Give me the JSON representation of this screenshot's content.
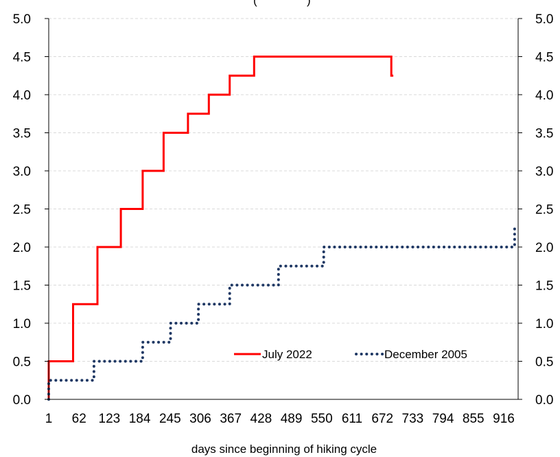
{
  "chart_data": {
    "type": "line",
    "title": "",
    "subtitle_fragment": "(",
    "subtitle_fragment_right": ")",
    "xlabel": "days since beginning of hiking cycle",
    "ylabel": "",
    "xlim": [
      1,
      945
    ],
    "ylim": [
      0,
      5
    ],
    "x_ticks": [
      1,
      62,
      123,
      184,
      245,
      306,
      367,
      428,
      489,
      550,
      611,
      672,
      733,
      794,
      855,
      916
    ],
    "y_ticks": [
      0.0,
      0.5,
      1.0,
      1.5,
      2.0,
      2.5,
      3.0,
      3.5,
      4.0,
      4.5,
      5.0
    ],
    "y_tick_labels": [
      "0.0",
      "0.5",
      "1.0",
      "1.5",
      "2.0",
      "2.5",
      "3.0",
      "3.5",
      "4.0",
      "4.5",
      "5.0"
    ],
    "grid": true,
    "legend_position": "lower-right",
    "series": [
      {
        "name": "July 2022",
        "color": "#ff0000",
        "style": "solid",
        "points": [
          [
            1,
            0.0
          ],
          [
            1,
            0.5
          ],
          [
            50,
            0.5
          ],
          [
            50,
            1.25
          ],
          [
            99,
            1.25
          ],
          [
            99,
            2.0
          ],
          [
            146,
            2.0
          ],
          [
            146,
            2.5
          ],
          [
            190,
            2.5
          ],
          [
            190,
            3.0
          ],
          [
            232,
            3.0
          ],
          [
            232,
            3.5
          ],
          [
            281,
            3.5
          ],
          [
            281,
            3.75
          ],
          [
            323,
            3.75
          ],
          [
            323,
            4.0
          ],
          [
            365,
            4.0
          ],
          [
            365,
            4.25
          ],
          [
            414,
            4.25
          ],
          [
            414,
            4.5
          ],
          [
            690,
            4.5
          ],
          [
            690,
            4.25
          ],
          [
            694,
            4.25
          ]
        ]
      },
      {
        "name": "December 2005",
        "color": "#1f3864",
        "style": "dotted",
        "points": [
          [
            1,
            0.0
          ],
          [
            1,
            0.25
          ],
          [
            92,
            0.25
          ],
          [
            92,
            0.5
          ],
          [
            190,
            0.5
          ],
          [
            190,
            0.75
          ],
          [
            246,
            0.75
          ],
          [
            246,
            1.0
          ],
          [
            302,
            1.0
          ],
          [
            302,
            1.25
          ],
          [
            365,
            1.25
          ],
          [
            365,
            1.5
          ],
          [
            463,
            1.5
          ],
          [
            463,
            1.75
          ],
          [
            554,
            1.75
          ],
          [
            554,
            2.0
          ],
          [
            938,
            2.0
          ],
          [
            938,
            2.25
          ],
          [
            942,
            2.25
          ]
        ]
      }
    ]
  }
}
